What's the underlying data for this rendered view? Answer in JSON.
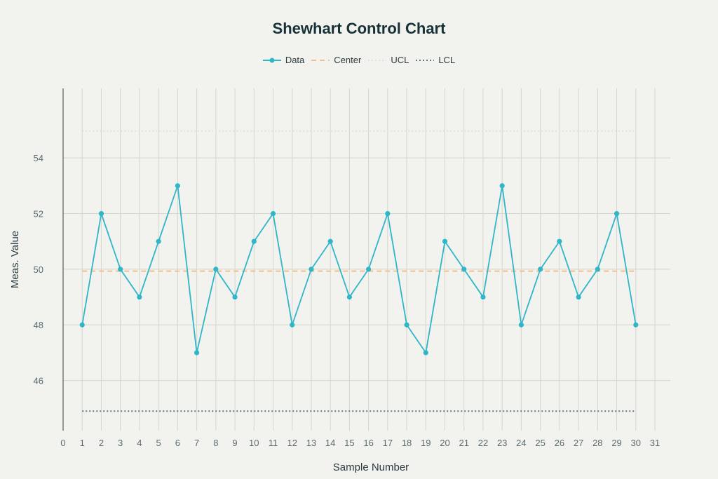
{
  "chart_data": {
    "type": "line",
    "title": "Shewhart Control Chart",
    "xlabel": "Sample Number",
    "ylabel": "Meas. Value",
    "xlim": [
      0,
      31
    ],
    "ylim": [
      44.2,
      56.5
    ],
    "x_ticks": [
      0,
      1,
      2,
      3,
      4,
      5,
      6,
      7,
      8,
      9,
      10,
      11,
      12,
      13,
      14,
      15,
      16,
      17,
      18,
      19,
      20,
      21,
      22,
      23,
      24,
      25,
      26,
      27,
      28,
      29,
      30,
      31
    ],
    "y_ticks": [
      46,
      48,
      50,
      52,
      54
    ],
    "grid": true,
    "legend_position": "top-center",
    "series": [
      {
        "name": "Data",
        "style": "line-markers",
        "color": "#2fb6c9",
        "x": [
          1,
          2,
          3,
          4,
          5,
          6,
          7,
          8,
          9,
          10,
          11,
          12,
          13,
          14,
          15,
          16,
          17,
          18,
          19,
          20,
          21,
          22,
          23,
          24,
          25,
          26,
          27,
          28,
          29,
          30
        ],
        "values": [
          48,
          52,
          50,
          49,
          51,
          53,
          47,
          50,
          49,
          51,
          52,
          48,
          50,
          51,
          49,
          50,
          52,
          48,
          47,
          51,
          50,
          49,
          53,
          48,
          50,
          51,
          49,
          50,
          52,
          48
        ]
      },
      {
        "name": "Center",
        "style": "dashed",
        "color": "#f5c08a",
        "x": [
          1,
          30
        ],
        "values": [
          49.93,
          49.93
        ]
      },
      {
        "name": "UCL",
        "style": "dotted",
        "color": "#dde4d2",
        "x": [
          1,
          30
        ],
        "values": [
          54.97,
          54.97
        ]
      },
      {
        "name": "LCL",
        "style": "dotted",
        "color": "#587a90",
        "x": [
          1,
          30
        ],
        "values": [
          44.9,
          44.9
        ]
      }
    ]
  }
}
